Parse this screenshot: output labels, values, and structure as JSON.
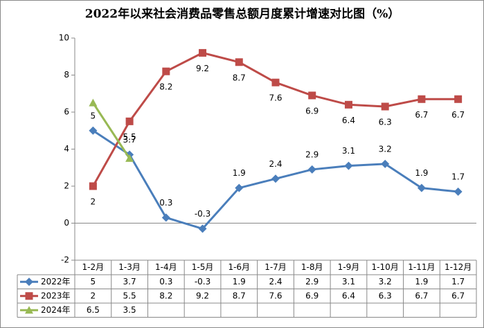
{
  "chart_data": {
    "type": "line",
    "title": "2022年以来社会消费品零售总额月度累计增速对比图（%）",
    "categories": [
      "1-2月",
      "1-3月",
      "1-4月",
      "1-5月",
      "1-6月",
      "1-7月",
      "1-8月",
      "1-9月",
      "1-10月",
      "1-11月",
      "1-12月"
    ],
    "series": [
      {
        "name": "2022年",
        "color": "#4a7ebb",
        "marker": "diamond",
        "values": [
          5,
          3.7,
          0.3,
          -0.3,
          1.9,
          2.4,
          2.9,
          3.1,
          3.2,
          1.9,
          1.7
        ]
      },
      {
        "name": "2023年",
        "color": "#be4b48",
        "marker": "square",
        "values": [
          2,
          5.5,
          8.2,
          9.2,
          8.7,
          7.6,
          6.9,
          6.4,
          6.3,
          6.7,
          6.7
        ]
      },
      {
        "name": "2024年",
        "color": "#98b954",
        "marker": "triangle",
        "values": [
          6.5,
          3.5,
          null,
          null,
          null,
          null,
          null,
          null,
          null,
          null,
          null
        ]
      }
    ],
    "ylim": [
      -2,
      10
    ],
    "yticks": [
      -2,
      0,
      2,
      4,
      6,
      8,
      10
    ],
    "grid": false
  }
}
